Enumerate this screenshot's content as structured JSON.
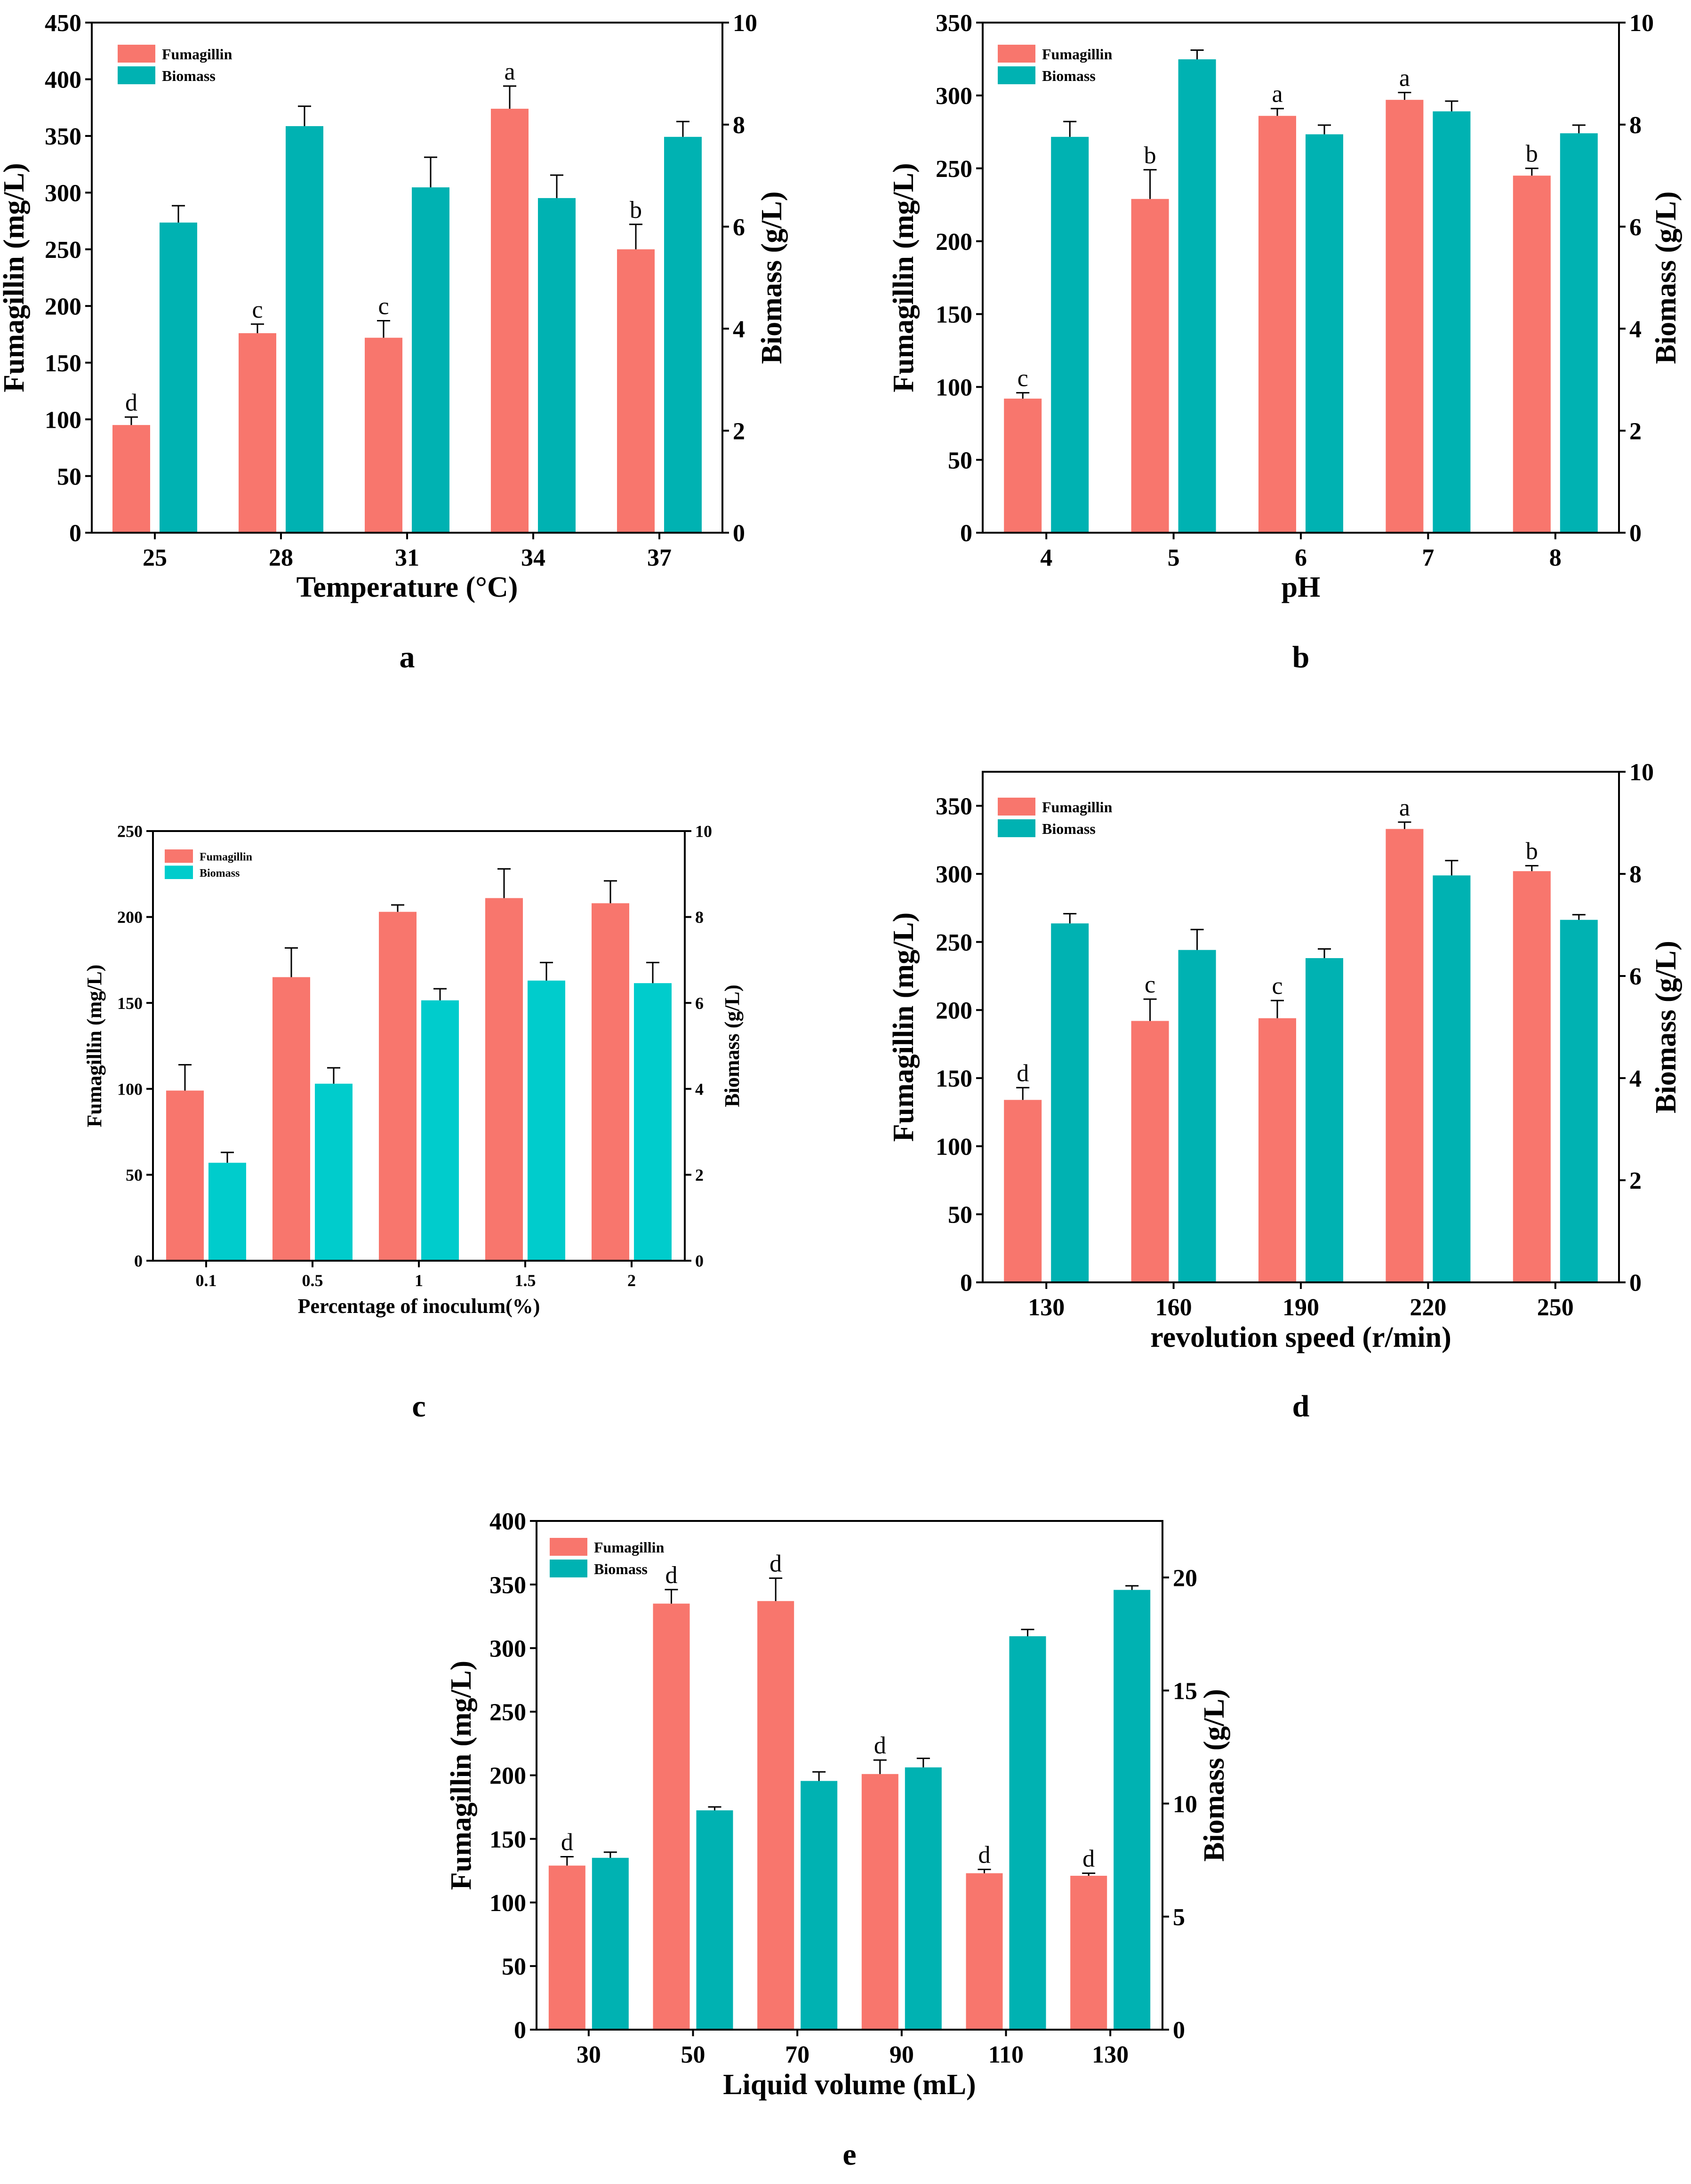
{
  "colors": {
    "fumagillin": "#F8766D",
    "biomass": "#00B2B2",
    "biomass_c": "#00CCCC",
    "axis": "#000000"
  },
  "chart_data": [
    {
      "type": "bar",
      "panel_label": "a",
      "categories": [
        "25",
        "28",
        "31",
        "34",
        "37"
      ],
      "xlabel": "Temperature (°C)",
      "ylabel": "Fumagillin (mg/L)",
      "y2label": "Biomass (g/L)",
      "ylim": [
        0,
        450
      ],
      "yticks": [
        0,
        50,
        100,
        150,
        200,
        250,
        300,
        350,
        400,
        450
      ],
      "y2lim": [
        0,
        10
      ],
      "y2ticks": [
        0,
        2,
        4,
        6,
        8,
        10
      ],
      "legend_position": "top-left",
      "series": [
        {
          "name": "Fumagillin",
          "axis": "left",
          "values": [
            95,
            176,
            172,
            374,
            250
          ],
          "errors": [
            7,
            8,
            15,
            20,
            22
          ],
          "letters": [
            "d",
            "c",
            "c",
            "a",
            "b"
          ]
        },
        {
          "name": "Biomass",
          "axis": "right",
          "values": [
            6.08,
            7.97,
            6.77,
            6.56,
            7.76
          ],
          "errors": [
            0.33,
            0.39,
            0.59,
            0.45,
            0.3
          ]
        }
      ]
    },
    {
      "type": "bar",
      "panel_label": "b",
      "categories": [
        "4",
        "5",
        "6",
        "7",
        "8"
      ],
      "xlabel": "pH",
      "ylabel": "Fumagillin (mg/L)",
      "y2label": "Biomass (g/L)",
      "ylim": [
        0,
        350
      ],
      "yticks": [
        0,
        50,
        100,
        150,
        200,
        250,
        300,
        350
      ],
      "y2lim": [
        0,
        10
      ],
      "y2ticks": [
        0,
        2,
        4,
        6,
        8,
        10
      ],
      "legend_position": "top-left",
      "series": [
        {
          "name": "Fumagillin",
          "axis": "left",
          "values": [
            92,
            229,
            286,
            297,
            245
          ],
          "errors": [
            4,
            20,
            5,
            5,
            5
          ],
          "letters": [
            "c",
            "b",
            "a",
            "a",
            "b"
          ]
        },
        {
          "name": "Biomass",
          "axis": "right",
          "values": [
            7.76,
            9.28,
            7.81,
            8.26,
            7.83
          ],
          "errors": [
            0.3,
            0.18,
            0.18,
            0.2,
            0.16
          ]
        }
      ]
    },
    {
      "type": "bar",
      "panel_label": "c",
      "categories": [
        "0.1",
        "0.5",
        "1",
        "1.5",
        "2"
      ],
      "xlabel": "Percentage of inoculum(%)",
      "ylabel": "Fumagillin (mg/L)",
      "y2label": "Biomass (g/L)",
      "ylim": [
        0,
        250
      ],
      "yticks": [
        0,
        50,
        100,
        150,
        200,
        250
      ],
      "y2lim": [
        0,
        10
      ],
      "y2ticks": [
        0,
        2,
        4,
        6,
        8,
        10
      ],
      "legend_position": "top-left",
      "series": [
        {
          "name": "Fumagillin",
          "axis": "left",
          "values": [
            99,
            165,
            203,
            211,
            208
          ],
          "errors": [
            15,
            17,
            4,
            17,
            13
          ],
          "letters": []
        },
        {
          "name": "Biomass",
          "axis": "right",
          "values": [
            2.28,
            4.12,
            6.06,
            6.52,
            6.46
          ],
          "errors": [
            0.24,
            0.37,
            0.27,
            0.42,
            0.48
          ]
        }
      ]
    },
    {
      "type": "bar",
      "panel_label": "d",
      "categories": [
        "130",
        "160",
        "190",
        "220",
        "250"
      ],
      "xlabel": "revolution speed (r/min)",
      "ylabel": "Fumagillin (mg/L)",
      "y2label": "Biomass (g/L)",
      "ylim": [
        0,
        375
      ],
      "yticks": [
        0,
        50,
        100,
        150,
        200,
        250,
        300,
        350
      ],
      "y2lim": [
        0,
        10
      ],
      "y2ticks": [
        0,
        2,
        4,
        6,
        8,
        10
      ],
      "legend_position": "top-left",
      "series": [
        {
          "name": "Fumagillin",
          "axis": "left",
          "values": [
            134,
            192,
            194,
            333,
            302
          ],
          "errors": [
            9,
            16,
            13,
            5,
            4
          ],
          "letters": [
            "d",
            "c",
            "c",
            "a",
            "b"
          ]
        },
        {
          "name": "Biomass",
          "axis": "right",
          "values": [
            7.03,
            6.51,
            6.35,
            7.97,
            7.1
          ],
          "errors": [
            0.19,
            0.4,
            0.18,
            0.29,
            0.1
          ]
        }
      ]
    },
    {
      "type": "bar",
      "panel_label": "e",
      "categories": [
        "30",
        "50",
        "70",
        "90",
        "110",
        "130"
      ],
      "xlabel": "Liquid volume (mL)",
      "ylabel": "Fumagillin (mg/L)",
      "y2label": "Biomass (g/L)",
      "ylim": [
        0,
        400
      ],
      "yticks": [
        0,
        50,
        100,
        150,
        200,
        250,
        300,
        350,
        400
      ],
      "y2lim": [
        0,
        22.5
      ],
      "y2ticks": [
        0,
        5,
        10,
        15,
        20
      ],
      "legend_position": "top-left",
      "series": [
        {
          "name": "Fumagillin",
          "axis": "left",
          "values": [
            129,
            335,
            337,
            201,
            123,
            121
          ],
          "errors": [
            7,
            11,
            18,
            11,
            3,
            2
          ],
          "letters": [
            "d",
            "d",
            "d",
            "d",
            "d",
            "d"
          ]
        },
        {
          "name": "Biomass",
          "axis": "right",
          "values": [
            7.6,
            9.7,
            11.0,
            11.6,
            17.4,
            19.45
          ],
          "errors": [
            0.25,
            0.15,
            0.4,
            0.4,
            0.3,
            0.18
          ]
        }
      ]
    }
  ]
}
